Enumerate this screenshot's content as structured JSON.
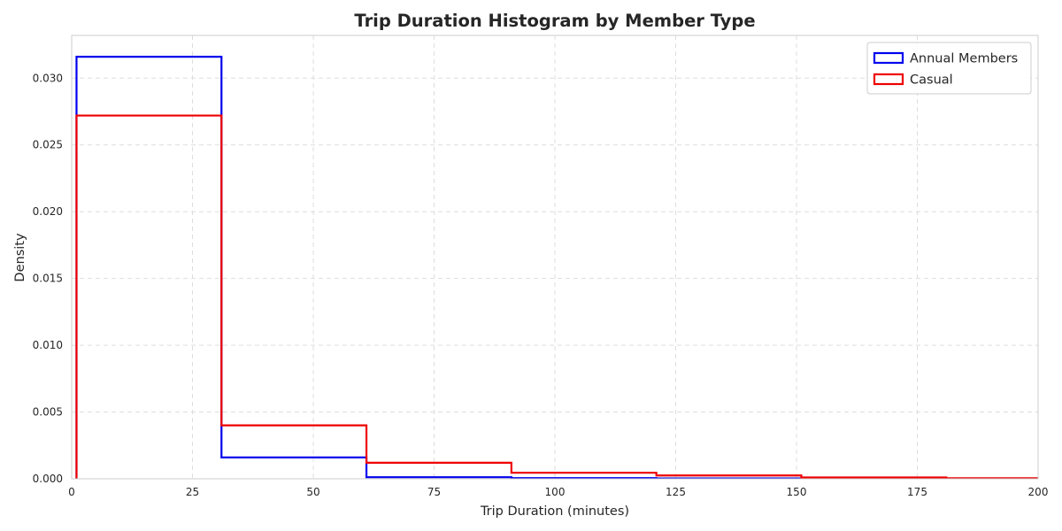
{
  "chart_data": {
    "type": "histogram",
    "title": "Trip Duration Histogram by Member Type",
    "xlabel": "Trip Duration (minutes)",
    "ylabel": "Density",
    "xlim": [
      0,
      200
    ],
    "ylim": [
      0,
      0.0332
    ],
    "xticks": [
      0,
      25,
      50,
      75,
      100,
      125,
      150,
      175,
      200
    ],
    "xtick_labels": [
      "0",
      "25",
      "50",
      "75",
      "100",
      "125",
      "150",
      "175",
      "200"
    ],
    "yticks": [
      0,
      0.005,
      0.01,
      0.015,
      0.02,
      0.025,
      0.03
    ],
    "ytick_labels": [
      "0.000",
      "0.005",
      "0.010",
      "0.015",
      "0.020",
      "0.025",
      "0.030"
    ],
    "grid": true,
    "legend_position": "top-right",
    "bin_edges": [
      1,
      31,
      61,
      91,
      121,
      151,
      181,
      211
    ],
    "series": [
      {
        "name": "Annual Members",
        "color": "#0000ee",
        "values": [
          0.0316,
          0.0016,
          0.00012,
          5e-05,
          3e-05,
          1e-05,
          5e-06
        ]
      },
      {
        "name": "Casual",
        "color": "#ee0000",
        "values": [
          0.0272,
          0.004,
          0.0012,
          0.00045,
          0.00025,
          0.0001,
          4e-05
        ]
      }
    ]
  }
}
